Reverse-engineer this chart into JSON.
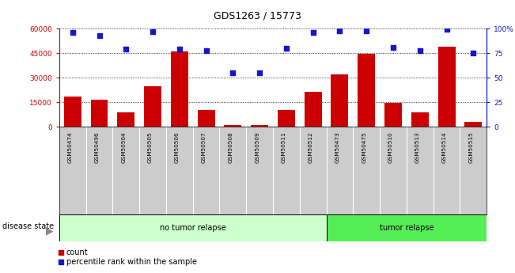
{
  "title": "GDS1263 / 15773",
  "samples": [
    "GSM50474",
    "GSM50496",
    "GSM50504",
    "GSM50505",
    "GSM50506",
    "GSM50507",
    "GSM50508",
    "GSM50509",
    "GSM50511",
    "GSM50512",
    "GSM50473",
    "GSM50475",
    "GSM50510",
    "GSM50513",
    "GSM50514",
    "GSM50515"
  ],
  "counts": [
    18500,
    16500,
    9000,
    25000,
    46000,
    10500,
    1000,
    1200,
    10500,
    21500,
    32000,
    44500,
    14500,
    9000,
    49000,
    3200
  ],
  "percentiles": [
    96,
    93,
    79,
    97,
    79,
    78,
    55,
    55,
    80,
    96,
    98,
    98,
    81,
    78,
    99,
    75
  ],
  "no_relapse_count": 10,
  "tumor_relapse_count": 6,
  "bar_color": "#CC0000",
  "dot_color": "#1515CC",
  "left_axis_color": "#CC0000",
  "right_axis_color": "#1515CC",
  "ylim_left": [
    0,
    60000
  ],
  "ylim_right": [
    0,
    100
  ],
  "yticks_left": [
    0,
    15000,
    30000,
    45000,
    60000
  ],
  "ytick_labels_left": [
    "0",
    "15000",
    "30000",
    "45000",
    "60000"
  ],
  "yticks_right": [
    0,
    25,
    50,
    75,
    100
  ],
  "ytick_labels_right": [
    "0",
    "25",
    "50",
    "75",
    "100%"
  ],
  "no_relapse_color": "#CCFFCC",
  "tumor_relapse_color": "#55EE55",
  "xlabel_bg_color": "#CCCCCC",
  "grid_color": "black",
  "grid_linestyle": ":"
}
